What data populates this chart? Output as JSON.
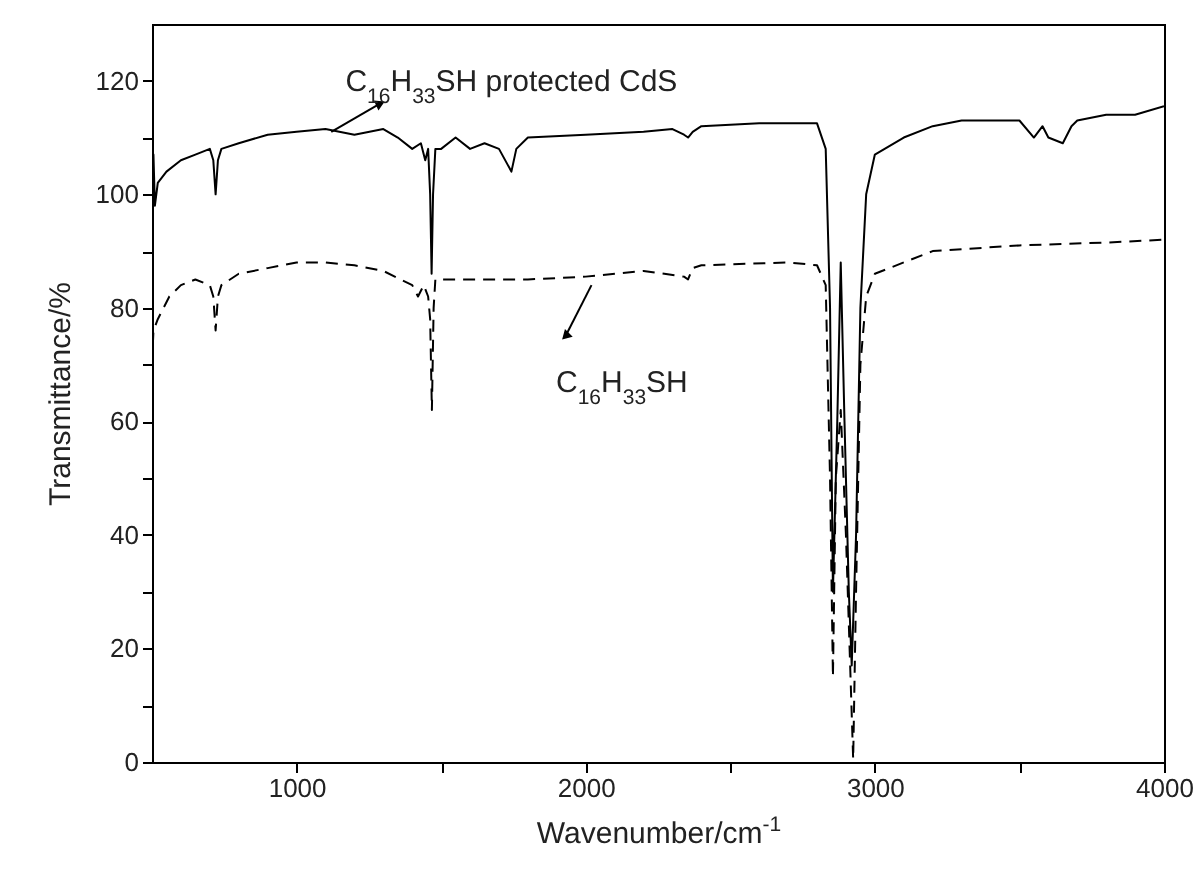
{
  "chart_data": {
    "type": "line",
    "xlabel": "Wavenumber/cm$^{-1}$",
    "ylabel": "Transmittance/%",
    "xlim": [
      500,
      4000
    ],
    "xticks": [
      1000,
      {
        "value": 1500,
        "label": null
      },
      2000,
      {
        "value": 2500,
        "label": null
      },
      3000,
      {
        "value": 3500,
        "label": null
      },
      4000
    ],
    "ylim": [
      0,
      130
    ],
    "yticks": [
      0,
      {
        "value": 10,
        "label": null
      },
      20,
      {
        "value": 30,
        "label": null
      },
      40,
      {
        "value": 50,
        "label": null
      },
      60,
      {
        "value": 70,
        "label": null
      },
      80,
      {
        "value": 90,
        "label": null
      },
      100,
      {
        "value": 110,
        "label": null
      },
      120
    ],
    "grid": false,
    "legend": false,
    "series": [
      {
        "color": "#000000",
        "line_style": "solid",
        "x": [
          500,
          505,
          510,
          520,
          550,
          600,
          650,
          700,
          712,
          720,
          728,
          740,
          800,
          900,
          1000,
          1100,
          1200,
          1300,
          1350,
          1400,
          1430,
          1445,
          1455,
          1462,
          1467,
          1472,
          1480,
          1500,
          1550,
          1600,
          1650,
          1700,
          1743,
          1760,
          1800,
          2000,
          2200,
          2300,
          2340,
          2354,
          2370,
          2400,
          2600,
          2800,
          2830,
          2845,
          2855,
          2870,
          2882,
          2895,
          2910,
          2920,
          2935,
          2950,
          2970,
          3000,
          3100,
          3200,
          3300,
          3400,
          3500,
          3550,
          3580,
          3600,
          3650,
          3680,
          3700,
          3800,
          3900,
          4000
        ],
        "values": [
          92,
          107,
          98,
          102,
          104,
          106,
          107,
          108,
          106,
          100,
          106,
          108,
          109,
          110.5,
          111,
          111.5,
          110.5,
          111.5,
          110,
          108,
          109,
          106,
          108,
          100,
          86,
          100,
          108,
          108,
          110,
          108,
          109,
          108,
          104,
          108,
          110,
          110.5,
          111,
          111.5,
          110.5,
          110,
          111,
          112,
          112.5,
          112.5,
          108,
          80,
          30,
          60,
          88,
          60,
          30,
          17,
          40,
          80,
          100,
          107,
          110,
          112,
          113,
          113,
          113,
          110,
          112,
          110,
          109,
          112,
          113,
          114,
          114,
          115.5
        ]
      },
      {
        "color": "#000000",
        "line_style": "dashed",
        "x": [
          500,
          505,
          520,
          560,
          600,
          650,
          700,
          712,
          720,
          728,
          740,
          800,
          900,
          1000,
          1100,
          1200,
          1300,
          1400,
          1420,
          1440,
          1455,
          1462,
          1468,
          1474,
          1480,
          1600,
          1800,
          2000,
          2200,
          2340,
          2354,
          2370,
          2400,
          2700,
          2800,
          2830,
          2845,
          2855,
          2865,
          2882,
          2900,
          2925,
          2935,
          2950,
          2970,
          3000,
          3200,
          3500,
          3800,
          4000
        ],
        "values": [
          70,
          76,
          78,
          82,
          84,
          85,
          84,
          82,
          76,
          82,
          84,
          86,
          87,
          88,
          88,
          87.5,
          86.5,
          84,
          82,
          84,
          82,
          78,
          62,
          80,
          85,
          85,
          85,
          85.5,
          86.5,
          85.5,
          85,
          87,
          87.5,
          88,
          87.5,
          84,
          50,
          15,
          50,
          62,
          40,
          0.5,
          30,
          70,
          82,
          86,
          90,
          91,
          91.5,
          92
        ]
      }
    ],
    "annotations": [
      {
        "text": "C$_{16}$H$_{33}$SH protected CdS",
        "x": 1120,
        "y": 111
      },
      {
        "text": "C$_{16}$H$_{33}$SH",
        "x": 2020,
        "y": 84
      }
    ]
  }
}
